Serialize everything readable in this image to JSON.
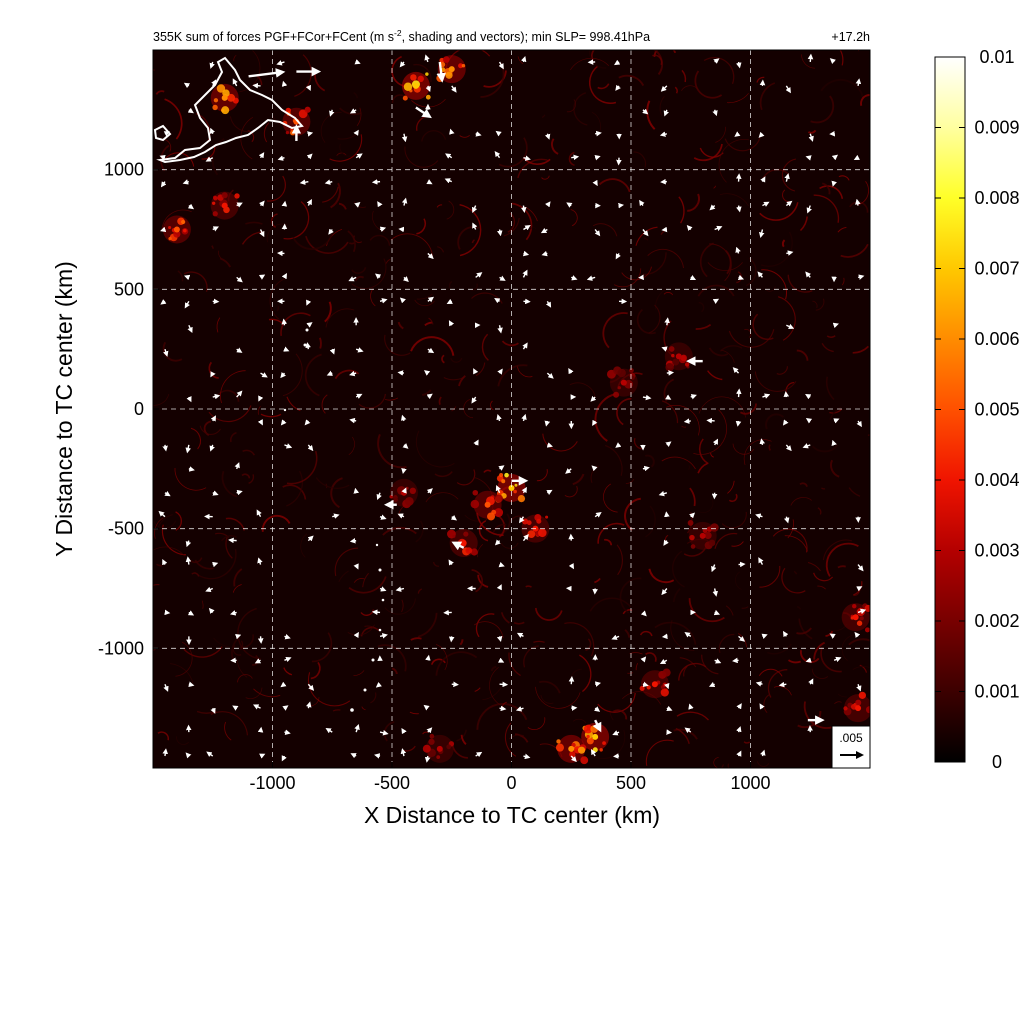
{
  "chart_data": {
    "type": "heatmap",
    "title": {
      "prefix": "355K sum of forces PGF+FCor+FCent (m s",
      "superscript": "-2",
      "suffix": ", shading and vectors); min SLP= 998.41hPa"
    },
    "time_label": "+17.2h",
    "xlabel": "X Distance to TC center (km)",
    "ylabel": "Y Distance to TC center (km)",
    "xlim": [
      -1500,
      1500
    ],
    "ylim": [
      -1500,
      1500
    ],
    "xticks": [
      -1000,
      -500,
      0,
      500,
      1000
    ],
    "yticks": [
      -1000,
      -500,
      0,
      500,
      1000
    ],
    "grid": true,
    "colorbar": {
      "min": 0,
      "max": 0.01,
      "ticks": [
        "0",
        "0.001",
        "0.002",
        "0.003",
        "0.004",
        "0.005",
        "0.006",
        "0.007",
        "0.008",
        "0.009",
        "0.01"
      ],
      "colormap": [
        "#000000",
        "#3c0000",
        "#780000",
        "#b40000",
        "#f01400",
        "#ff5000",
        "#ff8c00",
        "#ffc800",
        "#ffff28",
        "#ffffa0",
        "#ffffff"
      ]
    },
    "reference_vector": {
      "label": ".005",
      "value": 0.005
    },
    "hotspots": [
      {
        "x": -1200,
        "y": 1300,
        "value": 0.006
      },
      {
        "x": -900,
        "y": 1200,
        "value": 0.005
      },
      {
        "x": -400,
        "y": 1350,
        "value": 0.007
      },
      {
        "x": -250,
        "y": 1420,
        "value": 0.006
      },
      {
        "x": -1400,
        "y": 750,
        "value": 0.005
      },
      {
        "x": -1200,
        "y": 850,
        "value": 0.004
      },
      {
        "x": 0,
        "y": -330,
        "value": 0.007
      },
      {
        "x": -100,
        "y": -400,
        "value": 0.005
      },
      {
        "x": -200,
        "y": -560,
        "value": 0.004
      },
      {
        "x": 100,
        "y": -500,
        "value": 0.004
      },
      {
        "x": -450,
        "y": -350,
        "value": 0.003
      },
      {
        "x": 700,
        "y": 220,
        "value": 0.003
      },
      {
        "x": 470,
        "y": 110,
        "value": 0.003
      },
      {
        "x": 350,
        "y": -1370,
        "value": 0.007
      },
      {
        "x": 250,
        "y": -1420,
        "value": 0.006
      },
      {
        "x": 600,
        "y": -1150,
        "value": 0.004
      },
      {
        "x": 1440,
        "y": -870,
        "value": 0.004
      },
      {
        "x": 1450,
        "y": -1250,
        "value": 0.004
      },
      {
        "x": -300,
        "y": -1420,
        "value": 0.003
      },
      {
        "x": 800,
        "y": -530,
        "value": 0.003
      }
    ],
    "large_vectors": [
      {
        "x": -1100,
        "y": 1390,
        "u": 0.008,
        "v": 0.001
      },
      {
        "x": -900,
        "y": 1410,
        "u": 0.005,
        "v": 0.0
      },
      {
        "x": -400,
        "y": 1260,
        "u": 0.003,
        "v": -0.002
      },
      {
        "x": -300,
        "y": 1450,
        "u": 0.0005,
        "v": -0.004
      },
      {
        "x": -900,
        "y": 1120,
        "u": 0.0,
        "v": 0.003
      },
      {
        "x": 800,
        "y": 200,
        "u": -0.003,
        "v": 0.0
      },
      {
        "x": 0,
        "y": -300,
        "u": 0.003,
        "v": 0.0
      },
      {
        "x": -480,
        "y": -400,
        "u": -0.002,
        "v": 0.0
      },
      {
        "x": -200,
        "y": -580,
        "u": -0.002,
        "v": 0.001
      },
      {
        "x": 1240,
        "y": -1300,
        "u": 0.003,
        "v": 0.0
      },
      {
        "x": 350,
        "y": -1300,
        "u": 0.001,
        "v": -0.002
      }
    ]
  }
}
